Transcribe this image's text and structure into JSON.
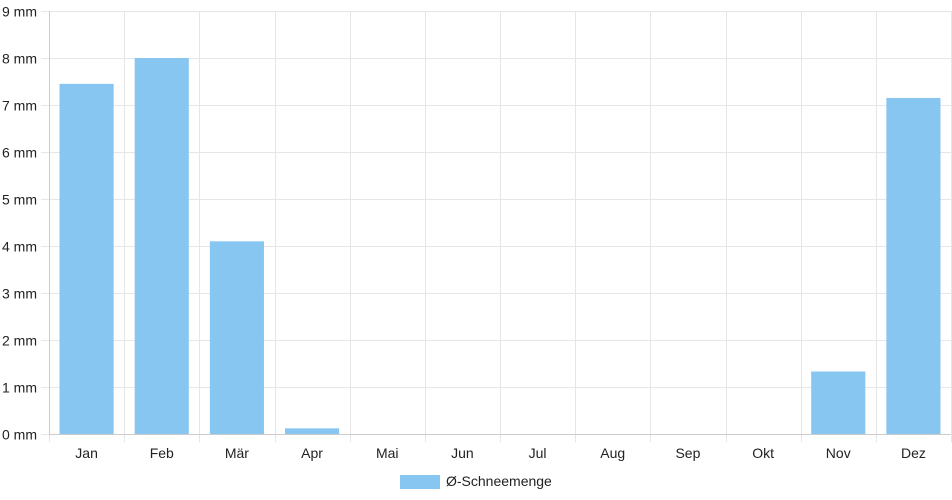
{
  "chart_data": {
    "type": "bar",
    "categories": [
      "Jan",
      "Feb",
      "Mär",
      "Apr",
      "Mai",
      "Jun",
      "Jul",
      "Aug",
      "Sep",
      "Okt",
      "Nov",
      "Dez"
    ],
    "series": [
      {
        "name": "Ø-Schneemenge",
        "values": [
          7.45,
          8.0,
          4.1,
          0.12,
          0,
          0,
          0,
          0,
          0,
          0,
          1.33,
          7.15
        ],
        "color": "#88c6f2"
      }
    ],
    "y_ticks": [
      "0 mm",
      "1 mm",
      "2 mm",
      "3 mm",
      "4 mm",
      "5 mm",
      "6 mm",
      "7 mm",
      "8 mm",
      "9 mm"
    ],
    "ylim": [
      0,
      9
    ],
    "grid": true,
    "legend_position": "bottom-center",
    "grid_color": "#e6e6e6",
    "axis_color": "#cccccc"
  }
}
